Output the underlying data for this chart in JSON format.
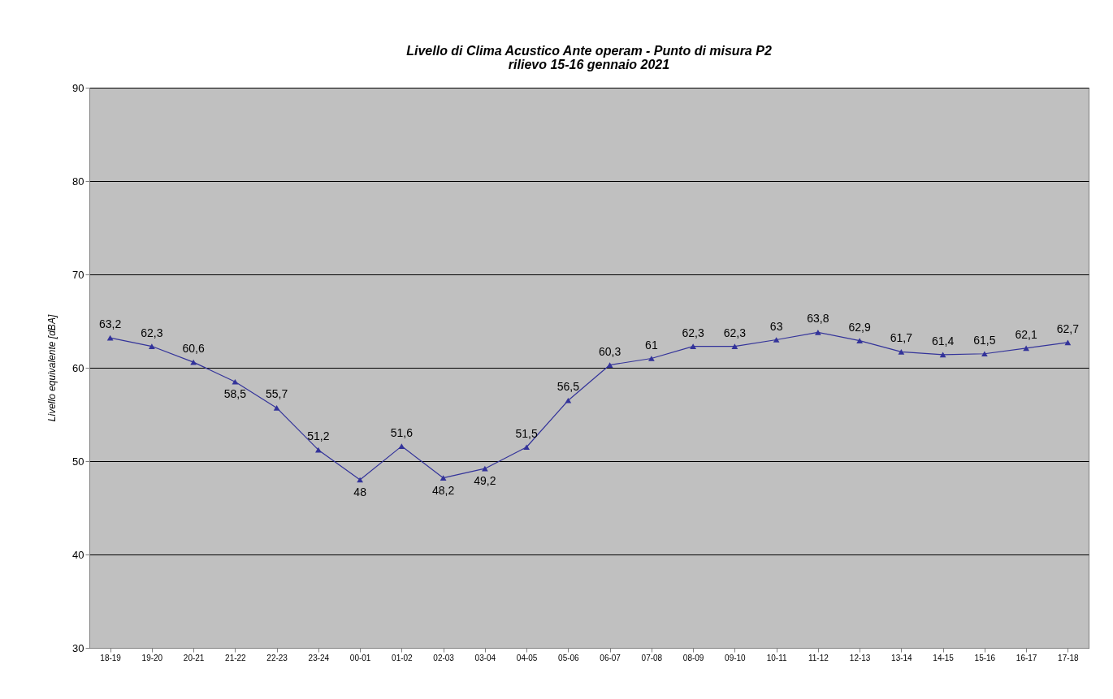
{
  "chart_data": {
    "type": "line",
    "title": "Livello di Clima Acustico Ante operam - Punto di misura P2",
    "subtitle": "rilievo 15-16 gennaio 2021",
    "ylabel": "Livello equivalente  [dBA]",
    "categories": [
      "18-19",
      "19-20",
      "20-21",
      "21-22",
      "22-23",
      "23-24",
      "00-01",
      "01-02",
      "02-03",
      "03-04",
      "04-05",
      "05-06",
      "06-07",
      "07-08",
      "08-09",
      "09-10",
      "10-11",
      "11-12",
      "12-13",
      "13-14",
      "14-15",
      "15-16",
      "16-17",
      "17-18"
    ],
    "series": [
      {
        "color": "#33339a",
        "values": [
          63.2,
          62.3,
          60.6,
          58.5,
          55.7,
          51.2,
          48,
          51.6,
          48.2,
          49.2,
          51.5,
          56.5,
          60.3,
          61,
          62.3,
          62.3,
          63,
          63.8,
          62.9,
          61.7,
          61.4,
          61.5,
          62.1,
          62.7
        ],
        "value_labels": [
          "63,2",
          "62,3",
          "60,6",
          "58,5",
          "55,7",
          "51,2",
          "48",
          "51,6",
          "48,2",
          "49,2",
          "51,5",
          "56,5",
          "60,3",
          "61",
          "62,3",
          "62,3",
          "63",
          "63,8",
          "62,9",
          "61,7",
          "61,4",
          "61,5",
          "62,1",
          "62,7"
        ]
      }
    ],
    "ylim": [
      30,
      90
    ],
    "yticks": [
      30,
      40,
      50,
      60,
      70,
      80,
      90
    ],
    "grid": "y",
    "marker": "triangle",
    "line_style": "solid",
    "legend": false
  }
}
